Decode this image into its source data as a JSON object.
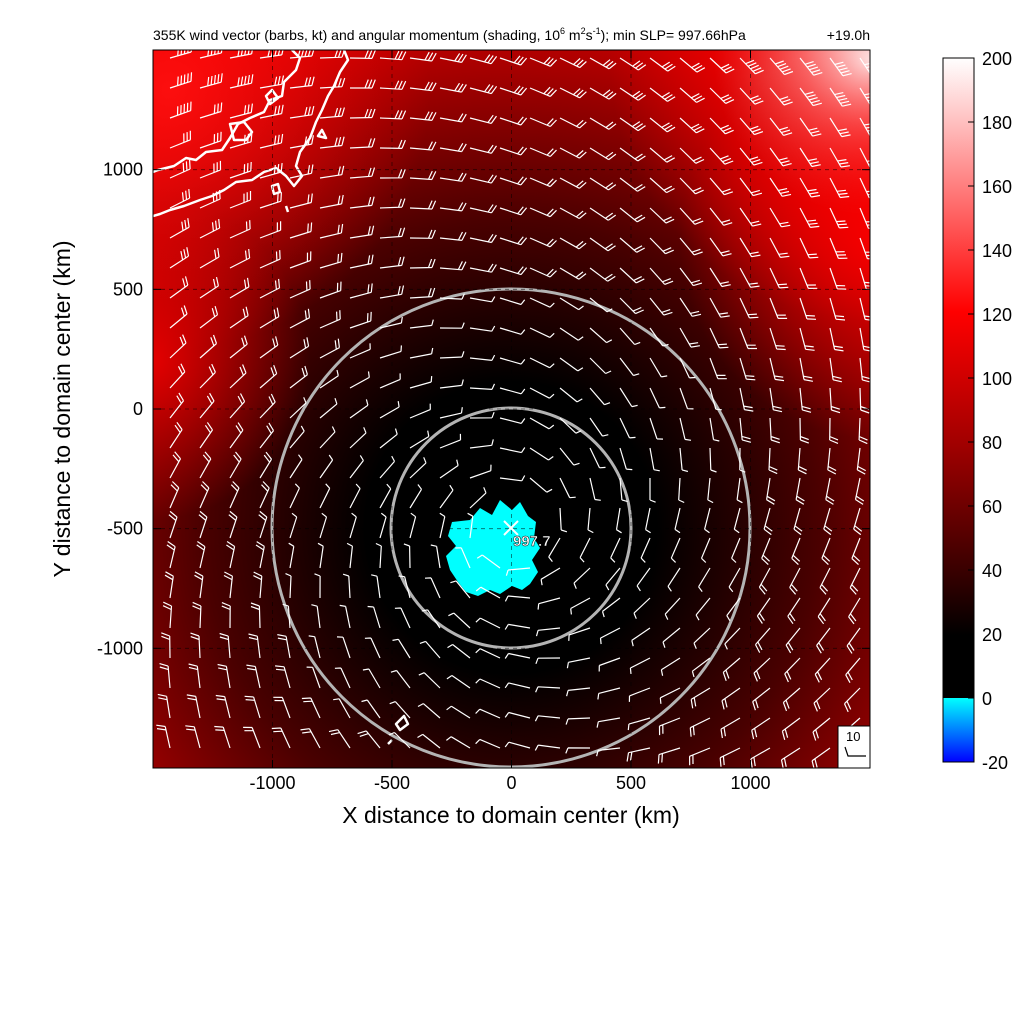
{
  "chart_data": {
    "type": "heatmap",
    "title": {
      "main": "355K wind vector (barbs, kt) and angular momentum (shading, 10",
      "sup1": "6",
      "mid1": " m",
      "sup2": "2",
      "mid2": "s",
      "sup3": "-1",
      "tail": "); min SLP= 997.66hPa",
      "time": "+19.0h"
    },
    "xlabel": "X distance to domain center (km)",
    "ylabel": "Y distance to domain center (km)",
    "xlim": [
      -1500,
      1500
    ],
    "ylim": [
      -1500,
      1500
    ],
    "xticks": [
      -1000,
      -500,
      0,
      500,
      1000
    ],
    "yticks": [
      1000,
      500,
      0,
      -500,
      -1000
    ],
    "xtick_labels": [
      "-1000",
      "-500",
      "0",
      "500",
      "1000"
    ],
    "ytick_labels": [
      "1000",
      "500",
      "0",
      "-500",
      "-1000"
    ],
    "grid": true,
    "colorbar": {
      "ticks": [
        200,
        180,
        160,
        140,
        120,
        100,
        80,
        60,
        40,
        20,
        0,
        -20
      ],
      "labels": [
        "200",
        "180",
        "160",
        "140",
        "120",
        "100",
        "80",
        "60",
        "40",
        "20",
        "0",
        "-20"
      ],
      "range": [
        -20,
        200
      ]
    },
    "storm_center": {
      "x": 0,
      "y": -500,
      "label": "997.7"
    },
    "range_rings_km": [
      500,
      1000
    ],
    "barb_reference": {
      "label": "10"
    },
    "colors": {
      "high": "#ffffff",
      "mid": "#ff0000",
      "low": "#000000",
      "negative_top": "#00ffff",
      "negative_bottom": "#0000ff",
      "rings": "#b4b4b4",
      "coast": "#ffffff"
    }
  }
}
